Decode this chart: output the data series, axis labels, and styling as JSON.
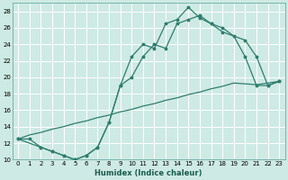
{
  "title": "",
  "xlabel": "Humidex (Indice chaleur)",
  "ylabel": "",
  "bg_color": "#ceeae4",
  "grid_color": "#ffffff",
  "line_color": "#2e7d6e",
  "xlim": [
    -0.5,
    23.5
  ],
  "ylim": [
    10,
    29
  ],
  "xticks": [
    0,
    1,
    2,
    3,
    4,
    5,
    6,
    7,
    8,
    9,
    10,
    11,
    12,
    13,
    14,
    15,
    16,
    17,
    18,
    19,
    20,
    21,
    22,
    23
  ],
  "yticks": [
    10,
    12,
    14,
    16,
    18,
    20,
    22,
    24,
    26,
    28
  ],
  "series1_x": [
    0,
    1,
    2,
    3,
    4,
    5,
    6,
    7,
    8,
    9,
    10,
    11,
    12,
    13,
    14,
    15,
    16,
    17,
    18,
    19,
    20,
    21,
    22,
    23
  ],
  "series1_y": [
    12.5,
    13.0,
    13.3,
    13.7,
    14.0,
    14.4,
    14.7,
    15.1,
    15.4,
    15.8,
    16.1,
    16.5,
    16.8,
    17.2,
    17.5,
    17.9,
    18.2,
    18.6,
    18.9,
    19.3,
    19.2,
    19.1,
    19.3,
    19.5
  ],
  "series2_x": [
    0,
    1,
    2,
    3,
    4,
    5,
    6,
    7,
    8,
    9,
    10,
    11,
    12,
    13,
    14,
    15,
    16,
    17,
    18,
    19,
    20,
    21,
    22,
    23
  ],
  "series2_y": [
    12.5,
    12.5,
    11.5,
    11.0,
    10.5,
    10.0,
    10.5,
    11.5,
    14.5,
    19.0,
    22.5,
    24.0,
    23.5,
    26.5,
    27.0,
    28.5,
    27.2,
    26.5,
    26.0,
    25.0,
    22.5,
    19.0,
    19.0,
    19.5
  ],
  "series3_x": [
    0,
    2,
    3,
    4,
    5,
    6,
    7,
    8,
    9,
    10,
    11,
    12,
    13,
    14,
    15,
    16,
    17,
    18,
    20,
    21,
    22,
    23
  ],
  "series3_y": [
    12.5,
    11.5,
    11.0,
    10.5,
    10.0,
    10.5,
    11.5,
    14.5,
    19.0,
    20.0,
    22.5,
    24.0,
    23.5,
    26.5,
    27.0,
    27.5,
    26.5,
    25.5,
    24.5,
    22.5,
    19.0,
    19.5
  ]
}
